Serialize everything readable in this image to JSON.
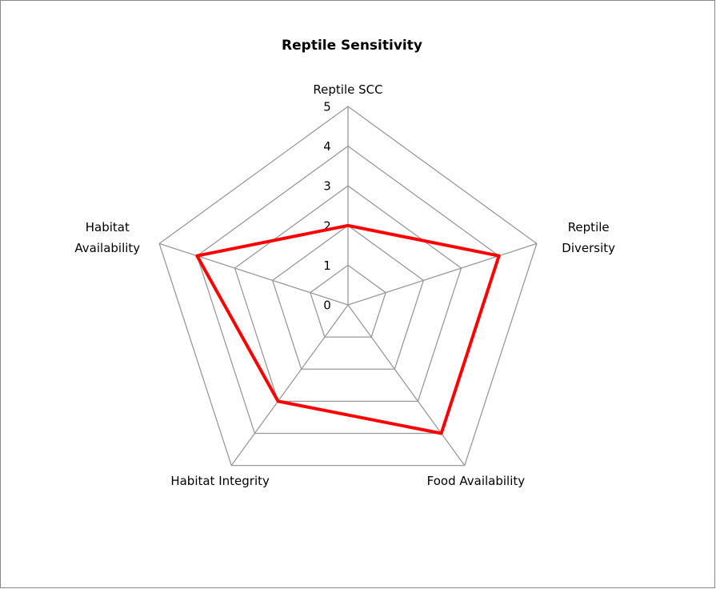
{
  "chart_data": {
    "type": "radar",
    "title": "Reptile Sensitivity",
    "categories": [
      "Reptile SCC",
      "Reptile Diversity",
      "Food Availability",
      "Habitat Integrity",
      "Habitat Availability"
    ],
    "series": [
      {
        "name": "Reptile Sensitivity",
        "color": "#ff0000",
        "values": [
          2,
          4,
          4,
          3,
          4
        ]
      }
    ],
    "ylim": [
      0,
      5
    ],
    "yticks": [
      0,
      1,
      2,
      3,
      4,
      5
    ],
    "grid": true
  }
}
